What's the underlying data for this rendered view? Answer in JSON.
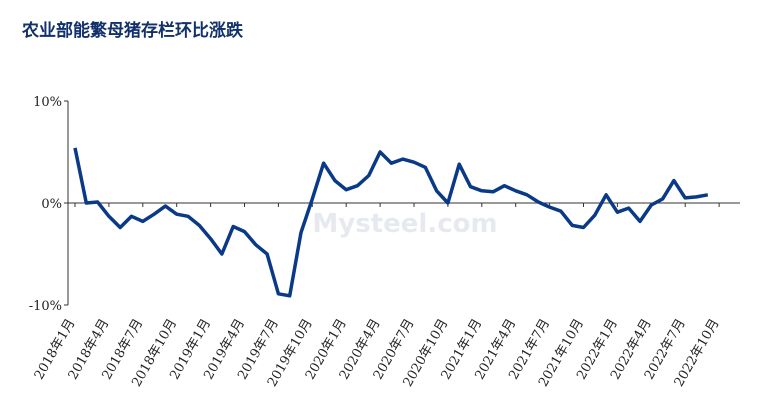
{
  "chart_data": {
    "type": "line",
    "title": "农业部能繁母猪存栏环比涨跌",
    "watermark": "Mysteel.com",
    "categories": [
      "2018年1月",
      null,
      null,
      "2018年4月",
      null,
      null,
      "2018年7月",
      null,
      null,
      "2018年10月",
      null,
      null,
      "2019年1月",
      null,
      null,
      "2019年4月",
      null,
      null,
      "2019年7月",
      null,
      null,
      "2019年10月",
      null,
      null,
      "2020年1月",
      null,
      null,
      "2020年4月",
      null,
      null,
      "2020年7月",
      null,
      null,
      "2020年10月",
      null,
      null,
      "2021年1月",
      null,
      null,
      "2021年4月",
      null,
      null,
      "2021年7月",
      null,
      null,
      "2021年10月",
      null,
      null,
      "2022年1月",
      null,
      null,
      "2022年4月",
      null,
      null,
      "2022年7月",
      null,
      null,
      "2022年10月"
    ],
    "series": [
      {
        "color": "#0a3a87",
        "values": [
          5.4,
          0,
          0.1,
          -1.3,
          -2.4,
          -1.3,
          -1.8,
          -1.1,
          -0.3,
          -1.1,
          -1.3,
          -2.2,
          -3.5,
          -5.0,
          -2.3,
          -2.8,
          -4.1,
          -5.0,
          -8.9,
          -9.1,
          -2.9,
          0.4,
          3.9,
          2.2,
          1.3,
          1.7,
          2.7,
          5.0,
          3.9,
          4.3,
          4.0,
          3.5,
          1.2,
          0.0,
          3.8,
          1.6,
          1.2,
          1.1,
          1.7,
          1.2,
          0.8,
          0.1,
          -0.4,
          -0.8,
          -2.2,
          -2.4,
          -1.2,
          0.8,
          -0.9,
          -0.5,
          -1.8,
          -0.2,
          0.4,
          2.2,
          0.5,
          0.6,
          0.8,
          null
        ]
      }
    ],
    "ylim": [
      -10,
      10
    ],
    "yticks": [
      {
        "value": -10,
        "label": "-10%"
      },
      {
        "value": 0,
        "label": "0%"
      },
      {
        "value": 10,
        "label": "10%"
      }
    ]
  }
}
